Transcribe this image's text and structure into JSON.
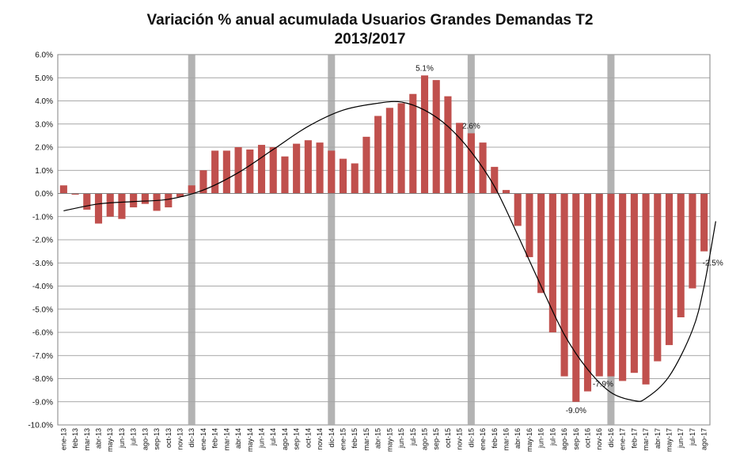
{
  "chart_data": {
    "type": "bar",
    "title_line1": "Variación % anual acumulada Usuarios Grandes Demandas T2",
    "title_line2": "2013/2017",
    "ylim": [
      -10.0,
      6.0
    ],
    "yticks": [
      "6.0%",
      "5.0%",
      "4.0%",
      "3.0%",
      "2.0%",
      "1.0%",
      "0.0%",
      "-1.0%",
      "-2.0%",
      "-3.0%",
      "-4.0%",
      "-5.0%",
      "-6.0%",
      "-7.0%",
      "-8.0%",
      "-9.0%",
      "-10.0%"
    ],
    "grid": true,
    "categories": [
      "ene-13",
      "feb-13",
      "mar-13",
      "abr-13",
      "may-13",
      "jun-13",
      "jul-13",
      "ago-13",
      "sep-13",
      "oct-13",
      "nov-13",
      "dic-13",
      "ene-14",
      "feb-14",
      "mar-14",
      "abr-14",
      "may-14",
      "jun-14",
      "jul-14",
      "ago-14",
      "sep-14",
      "oct-14",
      "nov-14",
      "dic-14",
      "ene-15",
      "feb-15",
      "mar-15",
      "abr-15",
      "may-15",
      "jun-15",
      "jul-15",
      "ago-15",
      "sep-15",
      "oct-15",
      "nov-15",
      "dic-15",
      "ene-16",
      "feb-16",
      "mar-16",
      "abr-16",
      "may-16",
      "jun-16",
      "jul-16",
      "ago-16",
      "sep-16",
      "oct-16",
      "nov-16",
      "dic-16",
      "ene-17",
      "feb-17",
      "mar-17",
      "abr-17",
      "may-17",
      "jun-17",
      "jul-17",
      "ago-17"
    ],
    "values": [
      0.35,
      -0.05,
      -0.7,
      -1.3,
      -1.0,
      -1.1,
      -0.6,
      -0.45,
      -0.75,
      -0.6,
      -0.15,
      0.35,
      1.0,
      1.85,
      1.85,
      2.0,
      1.9,
      2.1,
      2.0,
      1.6,
      2.15,
      2.3,
      2.2,
      1.85,
      1.5,
      1.3,
      2.45,
      3.35,
      3.7,
      3.9,
      4.3,
      5.1,
      4.9,
      4.2,
      3.05,
      2.6,
      2.2,
      1.15,
      0.15,
      -1.4,
      -2.75,
      -4.3,
      -6.0,
      -7.9,
      -9.0,
      -8.55,
      -7.9,
      -7.9,
      -8.1,
      -7.75,
      -8.25,
      -7.25,
      -6.55,
      -5.35,
      -4.1,
      -2.5
    ],
    "bar_color": "#c0504d",
    "year_end_markers": [
      "dic-13",
      "dic-14",
      "dic-15",
      "dic-16"
    ],
    "marker_color": "#a6a6a6",
    "trend_line": {
      "type": "polynomial",
      "points": [
        [
          0,
          -0.75
        ],
        [
          3,
          -0.45
        ],
        [
          6,
          -0.35
        ],
        [
          9,
          -0.25
        ],
        [
          12,
          0.15
        ],
        [
          15,
          0.9
        ],
        [
          18,
          1.9
        ],
        [
          21,
          2.9
        ],
        [
          24,
          3.6
        ],
        [
          27,
          3.9
        ],
        [
          29,
          3.95
        ],
        [
          31,
          3.6
        ],
        [
          33,
          2.9
        ],
        [
          35,
          1.8
        ],
        [
          37,
          0.3
        ],
        [
          39,
          -1.8
        ],
        [
          41,
          -4.0
        ],
        [
          43,
          -6.1
        ],
        [
          45,
          -7.6
        ],
        [
          47,
          -8.6
        ],
        [
          49,
          -8.95
        ],
        [
          50,
          -8.85
        ],
        [
          52,
          -7.9
        ],
        [
          54,
          -5.9
        ],
        [
          55,
          -4.0
        ],
        [
          56,
          -1.2
        ]
      ]
    },
    "data_labels": [
      {
        "category": "ago-15",
        "text": "5.1%"
      },
      {
        "category": "dic-15",
        "text": "2.6%"
      },
      {
        "category": "sep-16",
        "text": "-9.0%"
      },
      {
        "category": "dic-16",
        "text": "-7.9%"
      },
      {
        "category": "ago-17",
        "text": "-2.5%"
      }
    ]
  }
}
